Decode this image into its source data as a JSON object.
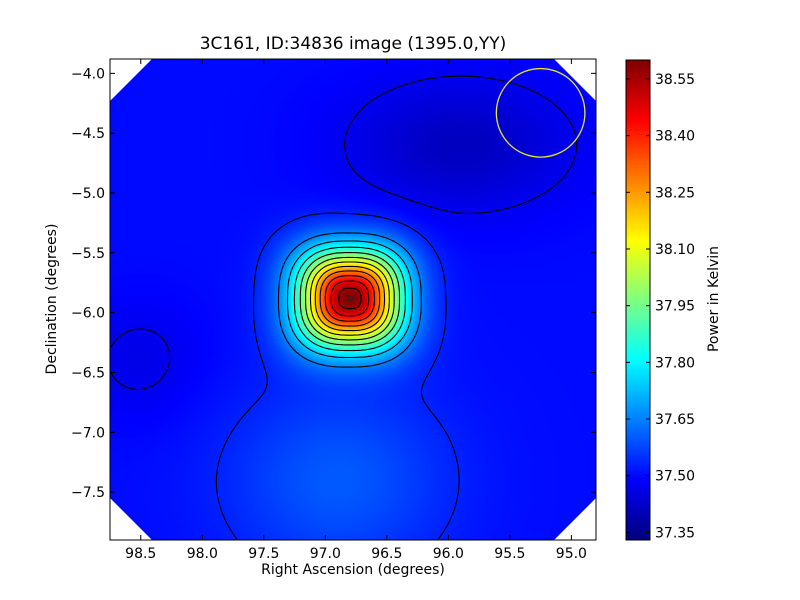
{
  "chart_data": {
    "type": "heatmap",
    "title": "3C161, ID:34836 image (1395.0,YY)",
    "xlabel": "Right Ascension (degrees)",
    "ylabel": "Declination (degrees)",
    "colorbar_label": "Power in Kelvin",
    "xlim": [
      98.75,
      94.8
    ],
    "ylim": [
      -7.9,
      -3.88
    ],
    "x_ticks": [
      "98.5",
      "98.0",
      "97.5",
      "97.0",
      "96.5",
      "96.0",
      "95.5",
      "95.0"
    ],
    "y_ticks": [
      "-4.0",
      "-4.5",
      "-5.0",
      "-5.5",
      "-6.0",
      "-6.5",
      "-7.0",
      "-7.5"
    ],
    "colorbar_ticks": [
      "38.55",
      "38.40",
      "38.25",
      "38.10",
      "37.95",
      "37.80",
      "37.65",
      "37.50",
      "37.35"
    ],
    "colorbar_range": [
      37.33,
      38.6
    ],
    "colormap": "jet",
    "peak": {
      "ra": 96.8,
      "dec": -5.88,
      "value": 38.6
    },
    "beam_circle": {
      "ra": 95.25,
      "dec": -4.33,
      "radius_deg": 0.36,
      "color": "#e6e632"
    },
    "contours": "black",
    "grid": false
  }
}
